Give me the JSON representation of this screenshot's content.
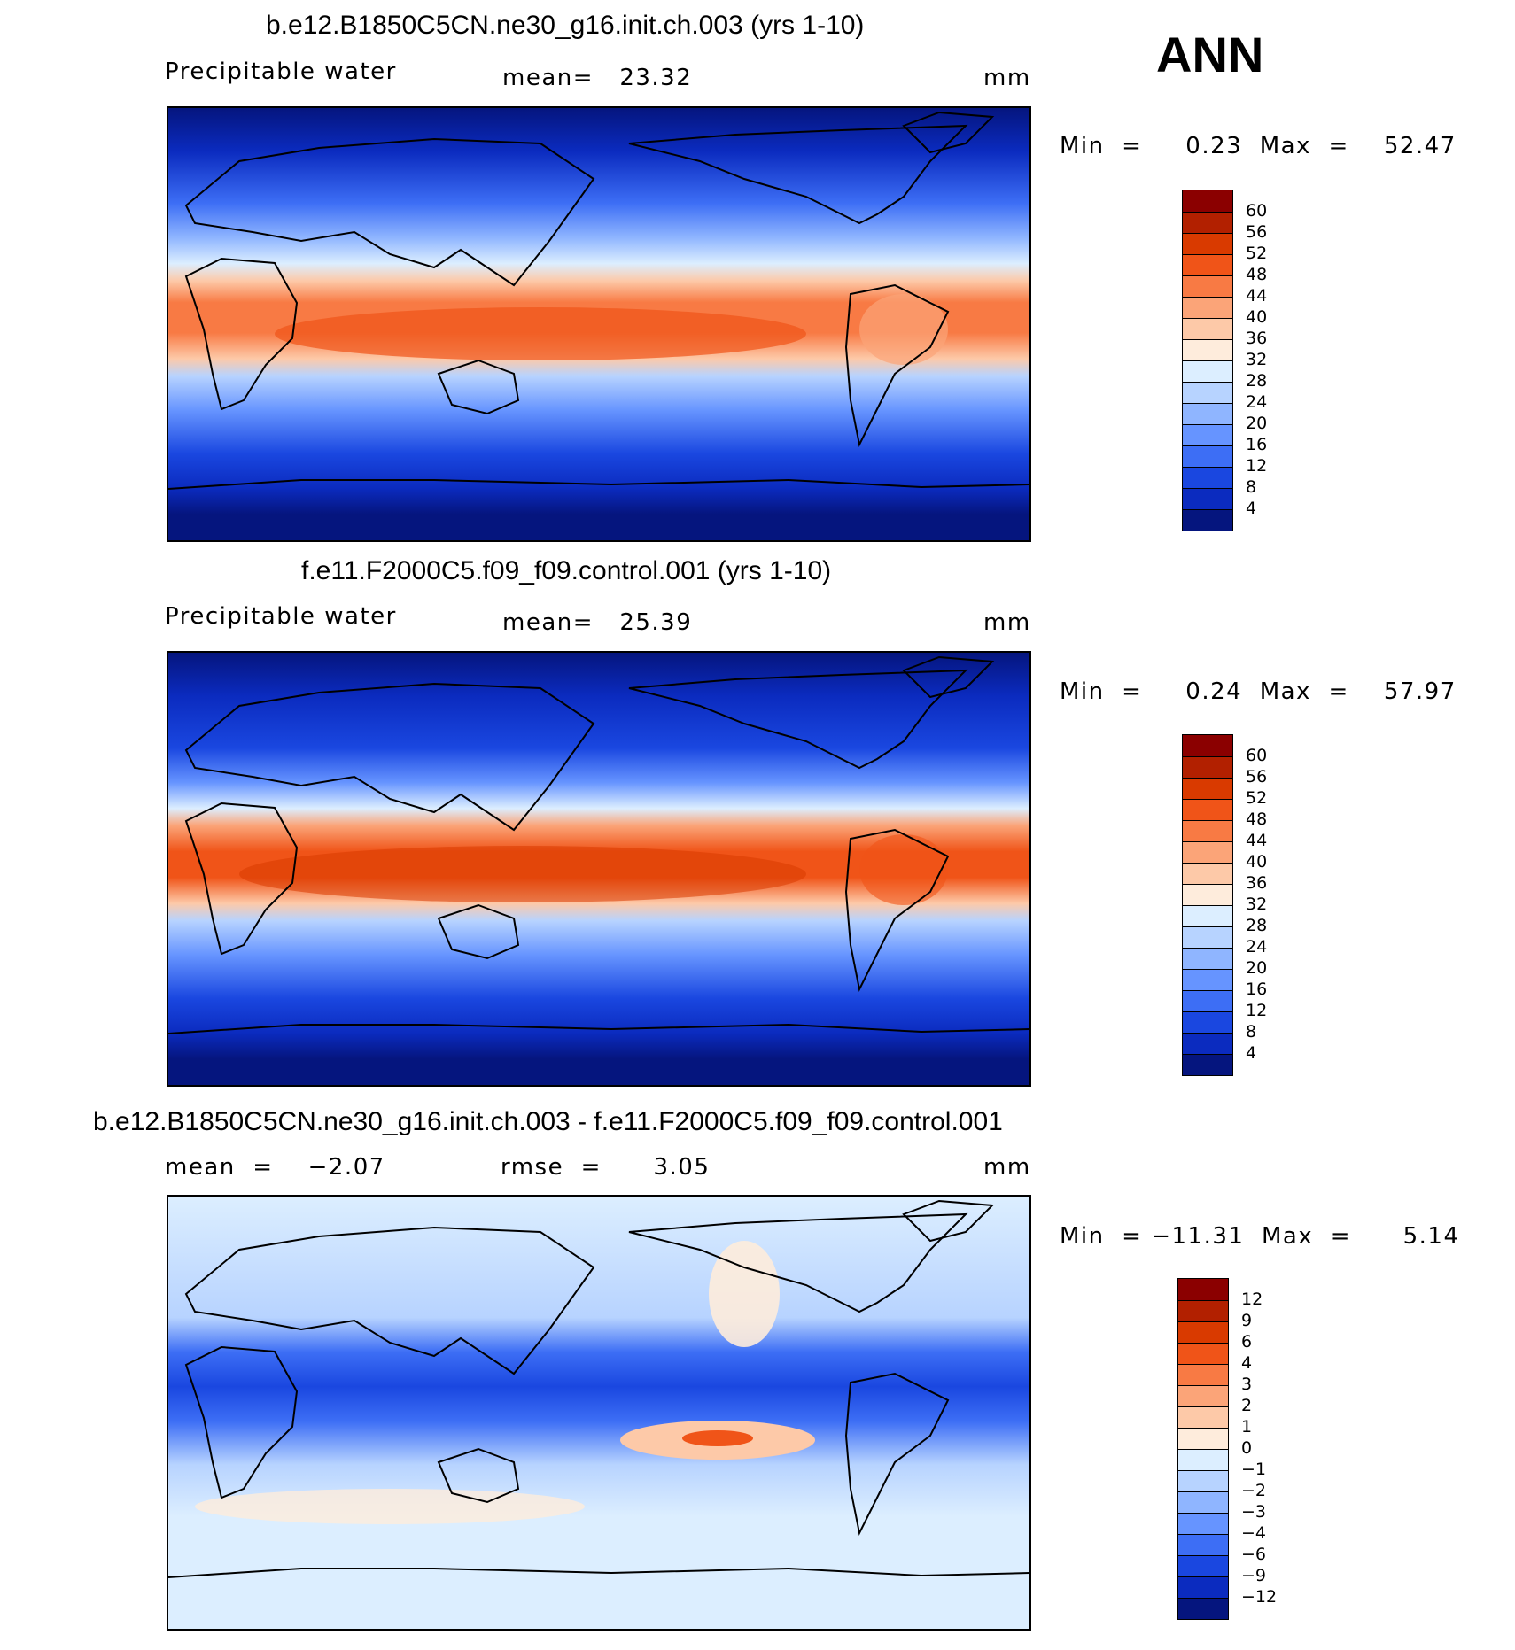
{
  "season": "ANN",
  "panels": [
    {
      "title": "b.e12.B1850C5CN.ne30_g16.init.ch.003 (yrs 1-10)",
      "variable": "Precipitable water",
      "stat_left": "",
      "stat_center": "mean=   23.32",
      "units": "mm",
      "minmax": "Min  =     0.23  Max  =    52.47",
      "colorbar": {
        "labels": [
          "60",
          "56",
          "52",
          "48",
          "44",
          "40",
          "36",
          "32",
          "28",
          "24",
          "20",
          "16",
          "12",
          "8",
          "4"
        ],
        "colors": [
          "#8b0000",
          "#b22000",
          "#d93a00",
          "#f05418",
          "#f87a44",
          "#fba478",
          "#fdc9a8",
          "#feecdc",
          "#dceeff",
          "#b7d3ff",
          "#8fb5ff",
          "#6694ff",
          "#3d6ef5",
          "#1a47e0",
          "#0b2bbf",
          "#05157e"
        ]
      }
    },
    {
      "title": "f.e11.F2000C5.f09_f09.control.001 (yrs 1-10)",
      "variable": "Precipitable water",
      "stat_left": "",
      "stat_center": "mean=   25.39",
      "units": "mm",
      "minmax": "Min  =     0.24  Max  =    57.97",
      "colorbar": {
        "labels": [
          "60",
          "56",
          "52",
          "48",
          "44",
          "40",
          "36",
          "32",
          "28",
          "24",
          "20",
          "16",
          "12",
          "8",
          "4"
        ],
        "colors": [
          "#8b0000",
          "#b22000",
          "#d93a00",
          "#f05418",
          "#f87a44",
          "#fba478",
          "#fdc9a8",
          "#feecdc",
          "#dceeff",
          "#b7d3ff",
          "#8fb5ff",
          "#6694ff",
          "#3d6ef5",
          "#1a47e0",
          "#0b2bbf",
          "#05157e"
        ]
      }
    },
    {
      "title": "b.e12.B1850C5CN.ne30_g16.init.ch.003 - f.e11.F2000C5.f09_f09.control.001",
      "variable": "",
      "stat_left": "mean  =    −2.07",
      "stat_center": "rmse  =      3.05",
      "units": "mm",
      "minmax": "Min  = −11.31  Max  =      5.14",
      "colorbar": {
        "labels": [
          "12",
          "9",
          "6",
          "4",
          "3",
          "2",
          "1",
          "0",
          "−1",
          "−2",
          "−3",
          "−4",
          "−6",
          "−9",
          "−12"
        ],
        "colors": [
          "#8b0000",
          "#b22000",
          "#d93a00",
          "#f05418",
          "#f87a44",
          "#fba478",
          "#fdc9a8",
          "#feecdc",
          "#dceeff",
          "#b7d3ff",
          "#8fb5ff",
          "#6694ff",
          "#3d6ef5",
          "#1a47e0",
          "#0b2bbf",
          "#05157e"
        ]
      }
    }
  ]
}
